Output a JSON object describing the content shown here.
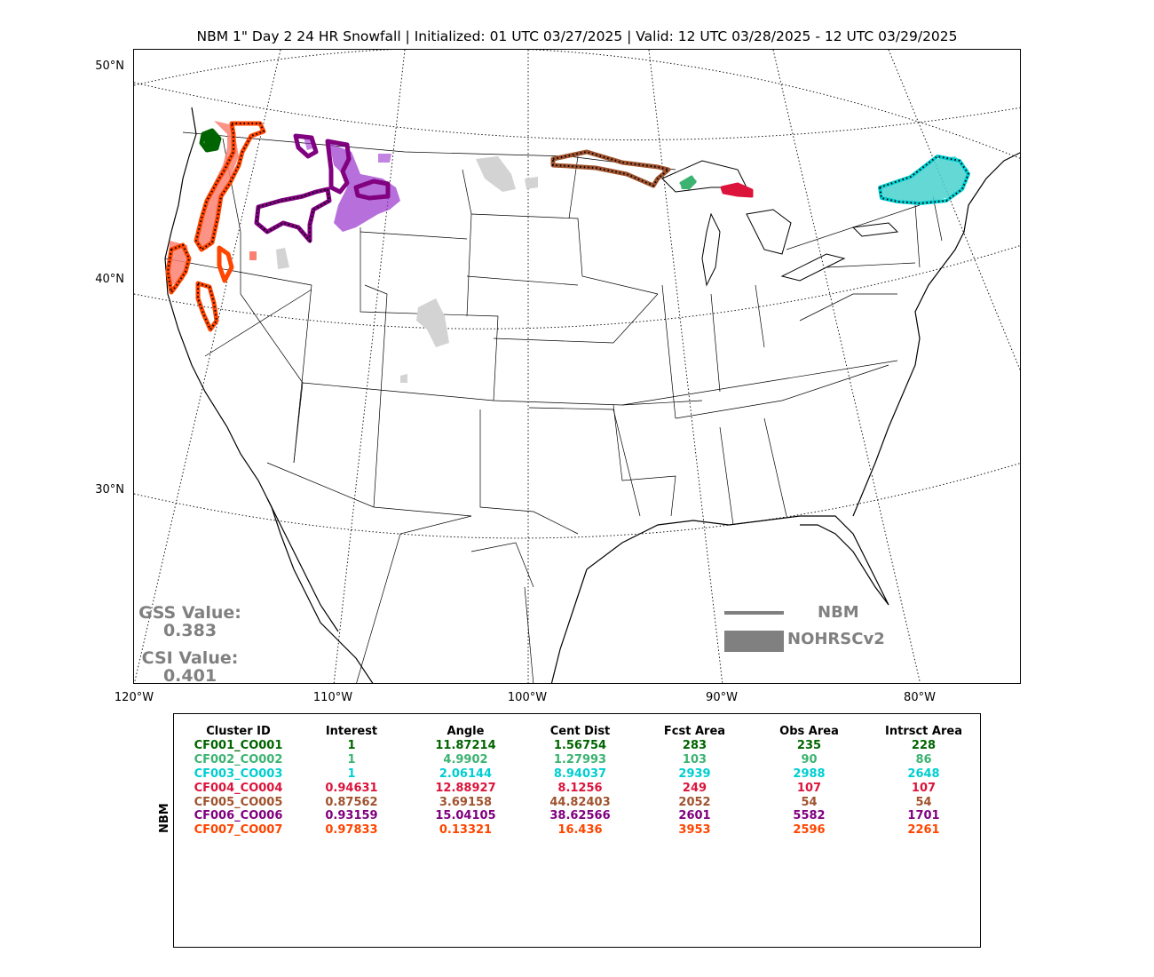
{
  "title": "NBM 1\" Day 2 24 HR Snowfall | Initialized: 01 UTC 03/27/2025 | Valid: 12 UTC 03/28/2025 - 12 UTC 03/29/2025",
  "map": {
    "lat_labels": [
      "50°N",
      "40°N",
      "30°N"
    ],
    "lon_labels": [
      "120°W",
      "110°W",
      "100°W",
      "90°W",
      "80°W"
    ],
    "obs_fill_gray": "#d3d3d3",
    "clusters": [
      {
        "id": "CF001_CO001",
        "color": "#006400",
        "fill": "#006400",
        "region": "Washington Cascades"
      },
      {
        "id": "CF002_CO002",
        "color": "#3cb371",
        "fill": "#3cb371",
        "region": "Upper Michigan west"
      },
      {
        "id": "CF003_CO003",
        "color": "#00ced1",
        "fill": "#48d1cc",
        "region": "Northern New England"
      },
      {
        "id": "CF004_CO004",
        "color": "#dc143c",
        "fill": "#dc143c",
        "region": "Upper Michigan east"
      },
      {
        "id": "CF005_CO005",
        "color": "#a0522d",
        "fill": "#a0522d",
        "region": "Northern Minnesota"
      },
      {
        "id": "CF006_CO006",
        "color": "#800080",
        "fill": "#9932cc",
        "region": "Northern Rockies"
      },
      {
        "id": "CF007_CO007",
        "color": "#ff4500",
        "fill": "#fa8072",
        "region": "Pacific Northwest and Sierra"
      }
    ]
  },
  "scores": {
    "gss_label": "GSS Value:",
    "gss_value": "0.383",
    "csi_label": "CSI Value:",
    "csi_value": "0.401"
  },
  "legend": {
    "nbm_label": "NBM",
    "obs_label": "NOHRSCv2",
    "color": "#808080"
  },
  "table": {
    "side_label": "NBM",
    "headers": [
      "Cluster ID",
      "Interest",
      "Angle",
      "Cent Dist",
      "Fcst Area",
      "Obs Area",
      "Intrsct Area"
    ],
    "rows": [
      {
        "color": "#006400",
        "cells": [
          "CF001_CO001",
          "1",
          "11.87214",
          "1.56754",
          "283",
          "235",
          "228"
        ]
      },
      {
        "color": "#3cb371",
        "cells": [
          "CF002_CO002",
          "1",
          "4.9902",
          "1.27993",
          "103",
          "90",
          "86"
        ]
      },
      {
        "color": "#00ced1",
        "cells": [
          "CF003_CO003",
          "1",
          "2.06144",
          "8.94037",
          "2939",
          "2988",
          "2648"
        ]
      },
      {
        "color": "#dc143c",
        "cells": [
          "CF004_CO004",
          "0.94631",
          "12.88927",
          "8.1256",
          "249",
          "107",
          "107"
        ]
      },
      {
        "color": "#a0522d",
        "cells": [
          "CF005_CO005",
          "0.87562",
          "3.69158",
          "44.82403",
          "2052",
          "54",
          "54"
        ]
      },
      {
        "color": "#800080",
        "cells": [
          "CF006_CO006",
          "0.93159",
          "15.04105",
          "38.62566",
          "2601",
          "5582",
          "1701"
        ]
      },
      {
        "color": "#ff4500",
        "cells": [
          "CF007_CO007",
          "0.97833",
          "0.13321",
          "16.436",
          "3953",
          "2596",
          "2261"
        ]
      }
    ]
  }
}
